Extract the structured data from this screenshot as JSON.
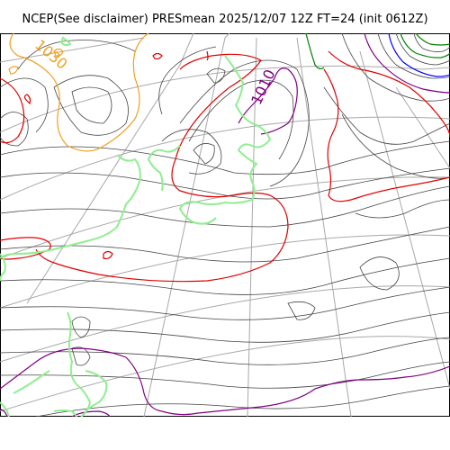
{
  "title": "NCEP(See disclaimer) PRESmean 2025/12/07 12Z FT=24 (init 0612Z)",
  "contour_labels": {
    "label_1030": "1030",
    "label_1010": "1010"
  },
  "colors": {
    "grid": "#a0a0a0",
    "contour": "#333333",
    "isobar_1030": "#f0a020",
    "isobar_1020": "#e00000",
    "isobar_1010": "#800080",
    "isobar_green": "#90ee90",
    "isobar_1000": "#008000",
    "isobar_990": "#0000ff"
  }
}
